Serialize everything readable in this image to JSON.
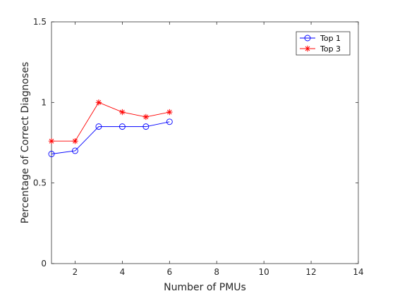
{
  "chart_data": {
    "type": "line",
    "title": "",
    "xlabel": "Number of PMUs",
    "ylabel": "Percentage of Correct Diagnoses",
    "xlim": [
      1,
      14
    ],
    "ylim": [
      0,
      1.5
    ],
    "xticks": [
      2,
      4,
      6,
      8,
      10,
      12,
      14
    ],
    "yticks": [
      0,
      0.5,
      1,
      1.5
    ],
    "xtick_labels": [
      "2",
      "4",
      "6",
      "8",
      "10",
      "12",
      "14"
    ],
    "ytick_labels": [
      "0",
      "0.5",
      "1",
      "1.5"
    ],
    "grid": false,
    "legend_position": "top-right",
    "series": [
      {
        "name": "Top 1",
        "marker": "circle",
        "color": "#0000ff",
        "x": [
          1,
          2,
          3,
          4,
          5,
          6
        ],
        "y": [
          0.68,
          0.7,
          0.85,
          0.85,
          0.85,
          0.88
        ]
      },
      {
        "name": "Top 3",
        "marker": "asterisk",
        "color": "#ff0000",
        "x": [
          1,
          2,
          3,
          4,
          5,
          6
        ],
        "y": [
          0.76,
          0.76,
          1.0,
          0.94,
          0.91,
          0.94
        ]
      }
    ]
  }
}
